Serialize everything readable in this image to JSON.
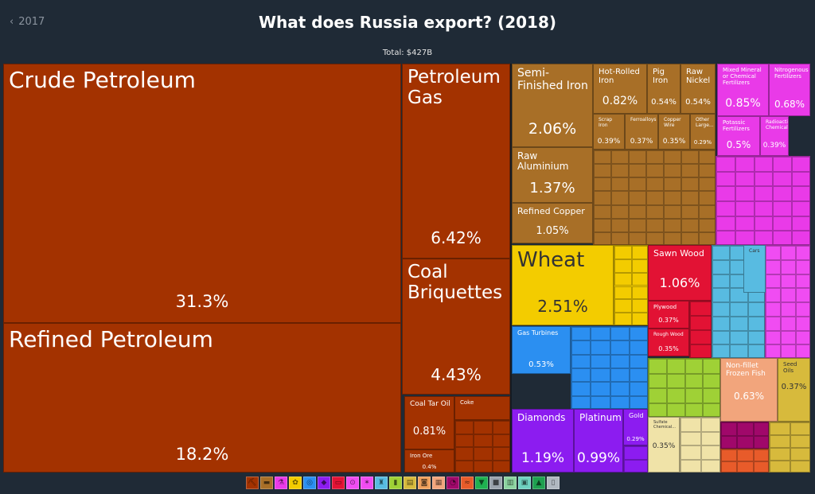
{
  "header": {
    "back_label": "2017",
    "title": "What does Russia export? (2018)",
    "total": "Total: $427B"
  },
  "colors": {
    "mineral": "#a33200",
    "metals": "#a86f27",
    "chemicals": "#e93ae8",
    "vegetable": "#f3cc00",
    "wood": "#e21234",
    "machines": "#2b8ff1",
    "transport": "#58bbe1",
    "precious": "#8c1cf0",
    "plastics": "#f04cf2",
    "animal": "#f2a57c",
    "foodstuffs": "#d7ba3c",
    "animals_veg": "#9fd136",
    "stone": "#f0e3a8",
    "misc_dark": "#a0086a"
  },
  "chart_data": {
    "type": "treemap",
    "title": "What does Russia export? (2018)",
    "total": "$427B",
    "items": [
      {
        "name": "Crude Petroleum",
        "value": 31.3,
        "category": "mineral"
      },
      {
        "name": "Refined Petroleum",
        "value": 18.2,
        "category": "mineral"
      },
      {
        "name": "Petroleum Gas",
        "value": 6.42,
        "category": "mineral"
      },
      {
        "name": "Coal Briquettes",
        "value": 4.43,
        "category": "mineral"
      },
      {
        "name": "Coal Tar Oil",
        "value": 0.81,
        "category": "mineral"
      },
      {
        "name": "Coke",
        "value": null,
        "category": "mineral"
      },
      {
        "name": "Iron Ore",
        "value": 0.4,
        "category": "mineral"
      },
      {
        "name": "Semi-Finished Iron",
        "value": 2.06,
        "category": "metals"
      },
      {
        "name": "Hot-Rolled Iron",
        "value": 0.82,
        "category": "metals"
      },
      {
        "name": "Pig Iron",
        "value": 0.54,
        "category": "metals"
      },
      {
        "name": "Raw Nickel",
        "value": 0.54,
        "category": "metals"
      },
      {
        "name": "Raw Aluminium",
        "value": 1.37,
        "category": "metals"
      },
      {
        "name": "Refined Copper",
        "value": 1.05,
        "category": "metals"
      },
      {
        "name": "Scrap Iron",
        "value": 0.39,
        "category": "metals"
      },
      {
        "name": "Ferroalloys",
        "value": 0.37,
        "category": "metals"
      },
      {
        "name": "Copper Wire",
        "value": 0.35,
        "category": "metals"
      },
      {
        "name": "Other Large...",
        "value": 0.29,
        "category": "metals"
      },
      {
        "name": "Mixed Mineral or Chemical Fertilizers",
        "value": 0.85,
        "category": "chemicals"
      },
      {
        "name": "Nitrogenous Fertilizers",
        "value": 0.68,
        "category": "chemicals"
      },
      {
        "name": "Potassic Fertilizers",
        "value": 0.5,
        "category": "chemicals"
      },
      {
        "name": "Radioactive Chemicals",
        "value": 0.39,
        "category": "chemicals"
      },
      {
        "name": "Wheat",
        "value": 2.51,
        "category": "vegetable"
      },
      {
        "name": "Sawn Wood",
        "value": 1.06,
        "category": "wood"
      },
      {
        "name": "Plywood",
        "value": 0.37,
        "category": "wood"
      },
      {
        "name": "Rough Wood",
        "value": 0.35,
        "category": "wood"
      },
      {
        "name": "Gas Turbines",
        "value": 0.53,
        "category": "machines"
      },
      {
        "name": "Diamonds",
        "value": 1.19,
        "category": "precious"
      },
      {
        "name": "Platinum",
        "value": 0.99,
        "category": "precious"
      },
      {
        "name": "Gold",
        "value": 0.29,
        "category": "precious"
      },
      {
        "name": "Non-fillet Frozen Fish",
        "value": 0.63,
        "category": "animal"
      },
      {
        "name": "Seed Oils",
        "value": 0.37,
        "category": "foodstuffs"
      },
      {
        "name": "Cars",
        "value": null,
        "category": "transport"
      },
      {
        "name": "Sulfate Chemical...",
        "value": 0.35,
        "category": "stone"
      }
    ]
  },
  "legend": [
    {
      "icon": "pickaxe-icon",
      "glyph": "⛏",
      "color": "#a33200"
    },
    {
      "icon": "anvil-icon",
      "glyph": "▬",
      "color": "#a86f27"
    },
    {
      "icon": "flask-icon",
      "glyph": "⚗",
      "color": "#e93ae8"
    },
    {
      "icon": "wheat-icon",
      "glyph": "✿",
      "color": "#f3cc00"
    },
    {
      "icon": "globe-icon",
      "glyph": "◎",
      "color": "#2b8ff1"
    },
    {
      "icon": "diamond-icon",
      "glyph": "◆",
      "color": "#8c1cf0"
    },
    {
      "icon": "ruler-icon",
      "glyph": "▭",
      "color": "#e21234"
    },
    {
      "icon": "tire-icon",
      "glyph": "⊙",
      "color": "#f04cf2"
    },
    {
      "icon": "leaf-icon",
      "glyph": "✶",
      "color": "#f04cf2"
    },
    {
      "icon": "chair-icon",
      "glyph": "♜",
      "color": "#58bbe1"
    },
    {
      "icon": "bottle-icon",
      "glyph": "▮",
      "color": "#9fd136"
    },
    {
      "icon": "scroll-icon",
      "glyph": "▤",
      "color": "#d7ba3c"
    },
    {
      "icon": "basket-icon",
      "glyph": "◙",
      "color": "#f0a05c"
    },
    {
      "icon": "bricks-icon",
      "glyph": "▦",
      "color": "#f2a57c"
    },
    {
      "icon": "gauge-icon",
      "glyph": "◔",
      "color": "#a0086a"
    },
    {
      "icon": "fish-icon",
      "glyph": "≈",
      "color": "#e85b2a"
    },
    {
      "icon": "shirt-icon",
      "glyph": "▼",
      "color": "#1fb050"
    },
    {
      "icon": "cube-icon",
      "glyph": "■",
      "color": "#9aa3ad"
    },
    {
      "icon": "fabric-icon",
      "glyph": "▥",
      "color": "#8cd3a0"
    },
    {
      "icon": "crate-icon",
      "glyph": "▣",
      "color": "#6ed2c0"
    },
    {
      "icon": "car-icon",
      "glyph": "▲",
      "color": "#1fa050"
    },
    {
      "icon": "train-icon",
      "glyph": "▯",
      "color": "#b0b8c0"
    }
  ]
}
